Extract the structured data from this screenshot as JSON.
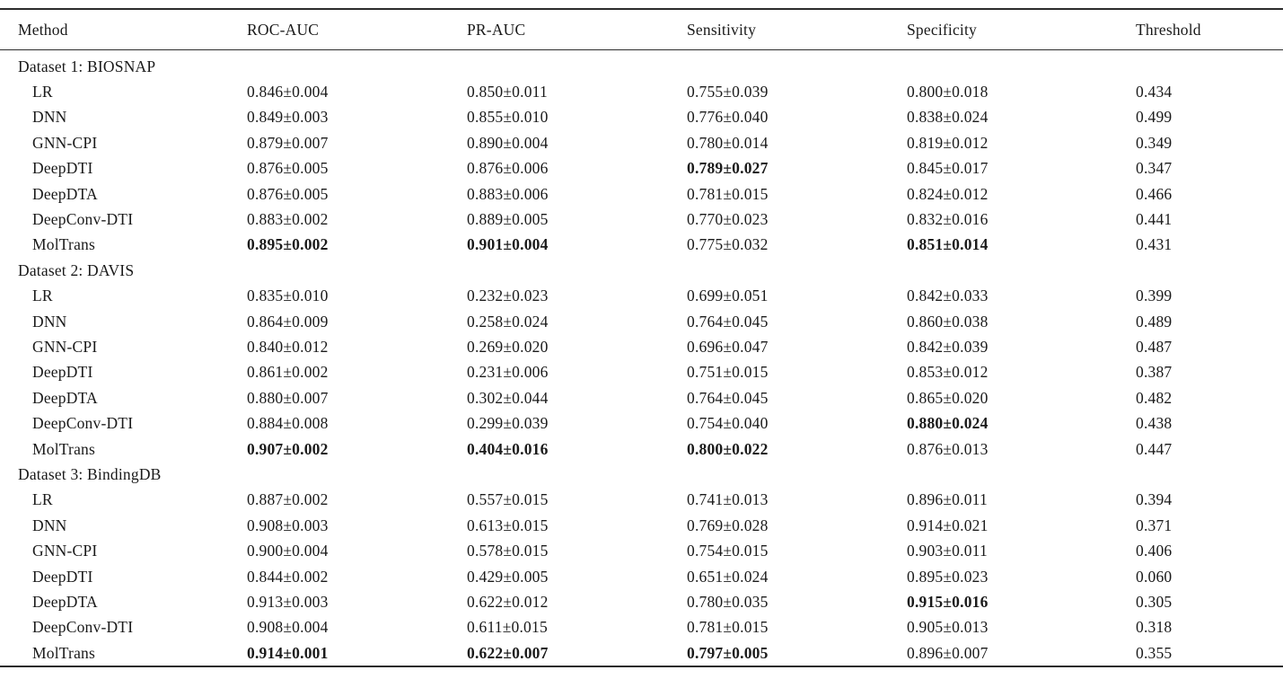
{
  "table": {
    "columns": [
      "Method",
      "ROC-AUC",
      "PR-AUC",
      "Sensitivity",
      "Specificity",
      "Threshold"
    ],
    "column_keys": [
      "roc-auc",
      "pr-auc",
      "sensitivity",
      "specificity",
      "threshold"
    ],
    "sections": [
      {
        "title": "Dataset 1: BIOSNAP",
        "rows": [
          {
            "method": "LR",
            "cells": [
              {
                "value": "0.846±0.004",
                "bold": false
              },
              {
                "value": "0.850±0.011",
                "bold": false
              },
              {
                "value": "0.755±0.039",
                "bold": false
              },
              {
                "value": "0.800±0.018",
                "bold": false
              },
              {
                "value": "0.434",
                "bold": false
              }
            ]
          },
          {
            "method": "DNN",
            "cells": [
              {
                "value": "0.849±0.003",
                "bold": false
              },
              {
                "value": "0.855±0.010",
                "bold": false
              },
              {
                "value": "0.776±0.040",
                "bold": false
              },
              {
                "value": "0.838±0.024",
                "bold": false
              },
              {
                "value": "0.499",
                "bold": false
              }
            ]
          },
          {
            "method": "GNN-CPI",
            "cells": [
              {
                "value": "0.879±0.007",
                "bold": false
              },
              {
                "value": "0.890±0.004",
                "bold": false
              },
              {
                "value": "0.780±0.014",
                "bold": false
              },
              {
                "value": "0.819±0.012",
                "bold": false
              },
              {
                "value": "0.349",
                "bold": false
              }
            ]
          },
          {
            "method": "DeepDTI",
            "cells": [
              {
                "value": "0.876±0.005",
                "bold": false
              },
              {
                "value": "0.876±0.006",
                "bold": false
              },
              {
                "value": "0.789±0.027",
                "bold": true
              },
              {
                "value": "0.845±0.017",
                "bold": false
              },
              {
                "value": "0.347",
                "bold": false
              }
            ]
          },
          {
            "method": "DeepDTA",
            "cells": [
              {
                "value": "0.876±0.005",
                "bold": false
              },
              {
                "value": "0.883±0.006",
                "bold": false
              },
              {
                "value": "0.781±0.015",
                "bold": false
              },
              {
                "value": "0.824±0.012",
                "bold": false
              },
              {
                "value": "0.466",
                "bold": false
              }
            ]
          },
          {
            "method": "DeepConv-DTI",
            "cells": [
              {
                "value": "0.883±0.002",
                "bold": false
              },
              {
                "value": "0.889±0.005",
                "bold": false
              },
              {
                "value": "0.770±0.023",
                "bold": false
              },
              {
                "value": "0.832±0.016",
                "bold": false
              },
              {
                "value": "0.441",
                "bold": false
              }
            ]
          },
          {
            "method": "MolTrans",
            "cells": [
              {
                "value": "0.895±0.002",
                "bold": true
              },
              {
                "value": "0.901±0.004",
                "bold": true
              },
              {
                "value": "0.775±0.032",
                "bold": false
              },
              {
                "value": "0.851±0.014",
                "bold": true
              },
              {
                "value": "0.431",
                "bold": false
              }
            ]
          }
        ]
      },
      {
        "title": "Dataset 2: DAVIS",
        "rows": [
          {
            "method": "LR",
            "cells": [
              {
                "value": "0.835±0.010",
                "bold": false
              },
              {
                "value": "0.232±0.023",
                "bold": false
              },
              {
                "value": "0.699±0.051",
                "bold": false
              },
              {
                "value": "0.842±0.033",
                "bold": false
              },
              {
                "value": "0.399",
                "bold": false
              }
            ]
          },
          {
            "method": "DNN",
            "cells": [
              {
                "value": "0.864±0.009",
                "bold": false
              },
              {
                "value": "0.258±0.024",
                "bold": false
              },
              {
                "value": "0.764±0.045",
                "bold": false
              },
              {
                "value": "0.860±0.038",
                "bold": false
              },
              {
                "value": "0.489",
                "bold": false
              }
            ]
          },
          {
            "method": "GNN-CPI",
            "cells": [
              {
                "value": "0.840±0.012",
                "bold": false
              },
              {
                "value": "0.269±0.020",
                "bold": false
              },
              {
                "value": "0.696±0.047",
                "bold": false
              },
              {
                "value": "0.842±0.039",
                "bold": false
              },
              {
                "value": "0.487",
                "bold": false
              }
            ]
          },
          {
            "method": "DeepDTI",
            "cells": [
              {
                "value": "0.861±0.002",
                "bold": false
              },
              {
                "value": "0.231±0.006",
                "bold": false
              },
              {
                "value": "0.751±0.015",
                "bold": false
              },
              {
                "value": "0.853±0.012",
                "bold": false
              },
              {
                "value": "0.387",
                "bold": false
              }
            ]
          },
          {
            "method": "DeepDTA",
            "cells": [
              {
                "value": "0.880±0.007",
                "bold": false
              },
              {
                "value": "0.302±0.044",
                "bold": false
              },
              {
                "value": "0.764±0.045",
                "bold": false
              },
              {
                "value": "0.865±0.020",
                "bold": false
              },
              {
                "value": "0.482",
                "bold": false
              }
            ]
          },
          {
            "method": "DeepConv-DTI",
            "cells": [
              {
                "value": "0.884±0.008",
                "bold": false
              },
              {
                "value": "0.299±0.039",
                "bold": false
              },
              {
                "value": "0.754±0.040",
                "bold": false
              },
              {
                "value": "0.880±0.024",
                "bold": true
              },
              {
                "value": "0.438",
                "bold": false
              }
            ]
          },
          {
            "method": "MolTrans",
            "cells": [
              {
                "value": "0.907±0.002",
                "bold": true
              },
              {
                "value": "0.404±0.016",
                "bold": true
              },
              {
                "value": "0.800±0.022",
                "bold": true
              },
              {
                "value": "0.876±0.013",
                "bold": false
              },
              {
                "value": "0.447",
                "bold": false
              }
            ]
          }
        ]
      },
      {
        "title": "Dataset 3: BindingDB",
        "rows": [
          {
            "method": "LR",
            "cells": [
              {
                "value": "0.887±0.002",
                "bold": false
              },
              {
                "value": "0.557±0.015",
                "bold": false
              },
              {
                "value": "0.741±0.013",
                "bold": false
              },
              {
                "value": "0.896±0.011",
                "bold": false
              },
              {
                "value": "0.394",
                "bold": false
              }
            ]
          },
          {
            "method": "DNN",
            "cells": [
              {
                "value": "0.908±0.003",
                "bold": false
              },
              {
                "value": "0.613±0.015",
                "bold": false
              },
              {
                "value": "0.769±0.028",
                "bold": false
              },
              {
                "value": "0.914±0.021",
                "bold": false
              },
              {
                "value": "0.371",
                "bold": false
              }
            ]
          },
          {
            "method": "GNN-CPI",
            "cells": [
              {
                "value": "0.900±0.004",
                "bold": false
              },
              {
                "value": "0.578±0.015",
                "bold": false
              },
              {
                "value": "0.754±0.015",
                "bold": false
              },
              {
                "value": "0.903±0.011",
                "bold": false
              },
              {
                "value": "0.406",
                "bold": false
              }
            ]
          },
          {
            "method": "DeepDTI",
            "cells": [
              {
                "value": "0.844±0.002",
                "bold": false
              },
              {
                "value": "0.429±0.005",
                "bold": false
              },
              {
                "value": "0.651±0.024",
                "bold": false
              },
              {
                "value": "0.895±0.023",
                "bold": false
              },
              {
                "value": "0.060",
                "bold": false
              }
            ]
          },
          {
            "method": "DeepDTA",
            "cells": [
              {
                "value": "0.913±0.003",
                "bold": false
              },
              {
                "value": "0.622±0.012",
                "bold": false
              },
              {
                "value": "0.780±0.035",
                "bold": false
              },
              {
                "value": "0.915±0.016",
                "bold": true
              },
              {
                "value": "0.305",
                "bold": false
              }
            ]
          },
          {
            "method": "DeepConv-DTI",
            "cells": [
              {
                "value": "0.908±0.004",
                "bold": false
              },
              {
                "value": "0.611±0.015",
                "bold": false
              },
              {
                "value": "0.781±0.015",
                "bold": false
              },
              {
                "value": "0.905±0.013",
                "bold": false
              },
              {
                "value": "0.318",
                "bold": false
              }
            ]
          },
          {
            "method": "MolTrans",
            "cells": [
              {
                "value": "0.914±0.001",
                "bold": true
              },
              {
                "value": "0.622±0.007",
                "bold": true
              },
              {
                "value": "0.797±0.005",
                "bold": true
              },
              {
                "value": "0.896±0.007",
                "bold": false
              },
              {
                "value": "0.355",
                "bold": false
              }
            ]
          }
        ]
      }
    ]
  }
}
